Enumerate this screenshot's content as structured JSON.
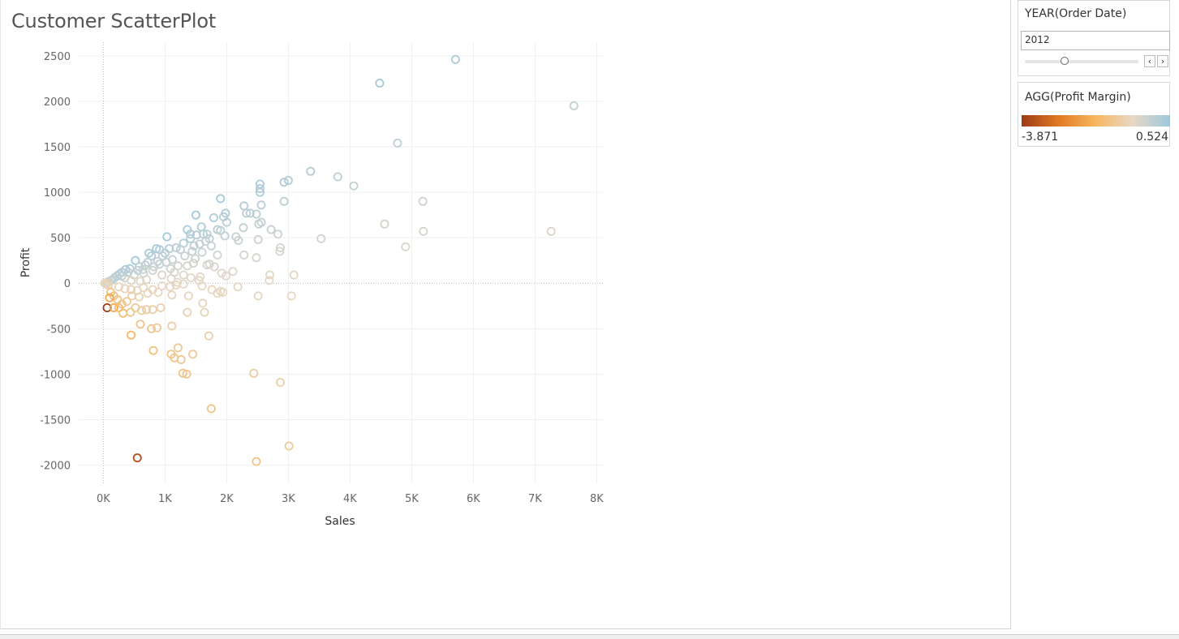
{
  "sheet": {
    "title": "Customer ScatterPlot"
  },
  "filter": {
    "title": "YEAR(Order Date)",
    "value": "2012",
    "prev_icon": "chevron-left-icon",
    "next_icon": "chevron-right-icon",
    "position": 0.35
  },
  "legend": {
    "title": "AGG(Profit Margin)",
    "min_label": "-3.871",
    "max_label": "0.524",
    "colors": [
      "#9c3b16",
      "#e07b22",
      "#f8b660",
      "#e6d8c6",
      "#9ec8de"
    ]
  },
  "chart_data": {
    "type": "scatter",
    "title": "Customer ScatterPlot",
    "xlabel": "Sales",
    "ylabel": "Profit",
    "xlim": [
      -400,
      8100
    ],
    "ylim": [
      -2200,
      2650
    ],
    "x_ticks": [
      0,
      1000,
      2000,
      3000,
      4000,
      5000,
      6000,
      7000,
      8000
    ],
    "x_tick_labels": [
      "0K",
      "1K",
      "2K",
      "3K",
      "4K",
      "5K",
      "6K",
      "7K",
      "8K"
    ],
    "y_ticks": [
      2500,
      2000,
      1500,
      1000,
      500,
      0,
      -500,
      -1000,
      -1500,
      -2000
    ],
    "y_tick_labels": [
      "2500",
      "2000",
      "1500",
      "1000",
      "500",
      "0",
      "-500",
      "-1000",
      "-1500",
      "-2000"
    ],
    "grid": true,
    "color_field": "AGG(Profit Margin)",
    "color_range": [
      -3.871,
      0.524
    ],
    "points": [
      [
        5710,
        2460,
        0.43
      ],
      [
        4480,
        2200,
        0.49
      ],
      [
        7630,
        1950,
        0.26
      ],
      [
        4770,
        1540,
        0.32
      ],
      [
        3360,
        1230,
        0.37
      ],
      [
        3800,
        1170,
        0.31
      ],
      [
        4060,
        1070,
        0.26
      ],
      [
        3000,
        1130,
        0.38
      ],
      [
        2930,
        1110,
        0.38
      ],
      [
        2540,
        1090,
        0.43
      ],
      [
        2540,
        1040,
        0.41
      ],
      [
        2540,
        1000,
        0.39
      ],
      [
        1900,
        930,
        0.49
      ],
      [
        2930,
        900,
        0.31
      ],
      [
        5180,
        900,
        0.17
      ],
      [
        2560,
        860,
        0.34
      ],
      [
        2280,
        850,
        0.37
      ],
      [
        1980,
        770,
        0.39
      ],
      [
        2320,
        770,
        0.33
      ],
      [
        2380,
        770,
        0.32
      ],
      [
        2480,
        760,
        0.31
      ],
      [
        1500,
        750,
        0.5
      ],
      [
        1950,
        730,
        0.37
      ],
      [
        1790,
        720,
        0.4
      ],
      [
        2000,
        670,
        0.33
      ],
      [
        2560,
        670,
        0.26
      ],
      [
        2520,
        650,
        0.26
      ],
      [
        4560,
        650,
        0.14
      ],
      [
        1590,
        620,
        0.39
      ],
      [
        2270,
        610,
        0.27
      ],
      [
        2720,
        590,
        0.22
      ],
      [
        1360,
        590,
        0.43
      ],
      [
        1850,
        590,
        0.32
      ],
      [
        1900,
        580,
        0.3
      ],
      [
        5190,
        570,
        0.11
      ],
      [
        7260,
        570,
        0.08
      ],
      [
        1680,
        540,
        0.32
      ],
      [
        2830,
        540,
        0.19
      ],
      [
        1620,
        540,
        0.33
      ],
      [
        1410,
        540,
        0.38
      ],
      [
        1510,
        530,
        0.35
      ],
      [
        1970,
        520,
        0.26
      ],
      [
        1030,
        510,
        0.5
      ],
      [
        2150,
        510,
        0.24
      ],
      [
        3530,
        490,
        0.14
      ],
      [
        1410,
        490,
        0.35
      ],
      [
        1720,
        490,
        0.28
      ],
      [
        2510,
        480,
        0.19
      ],
      [
        2190,
        470,
        0.21
      ],
      [
        1660,
        460,
        0.28
      ],
      [
        1300,
        440,
        0.34
      ],
      [
        1560,
        430,
        0.28
      ],
      [
        1470,
        410,
        0.28
      ],
      [
        1750,
        410,
        0.23
      ],
      [
        4900,
        400,
        0.08
      ],
      [
        2870,
        390,
        0.14
      ],
      [
        2860,
        350,
        0.12
      ],
      [
        1180,
        390,
        0.33
      ],
      [
        1070,
        380,
        0.35
      ],
      [
        910,
        370,
        0.41
      ],
      [
        1250,
        370,
        0.3
      ],
      [
        1440,
        350,
        0.24
      ],
      [
        1600,
        340,
        0.21
      ],
      [
        1850,
        310,
        0.17
      ],
      [
        2280,
        310,
        0.14
      ],
      [
        1000,
        330,
        0.33
      ],
      [
        1320,
        300,
        0.23
      ],
      [
        1490,
        270,
        0.18
      ],
      [
        2480,
        280,
        0.11
      ],
      [
        1460,
        220,
        0.15
      ],
      [
        1680,
        200,
        0.12
      ],
      [
        1720,
        210,
        0.12
      ],
      [
        1800,
        180,
        0.1
      ],
      [
        2100,
        130,
        0.06
      ],
      [
        1920,
        110,
        0.06
      ],
      [
        2700,
        90,
        0.03
      ],
      [
        3090,
        90,
        0.03
      ],
      [
        1990,
        80,
        0.04
      ],
      [
        1570,
        70,
        0.04
      ],
      [
        2690,
        30,
        0.01
      ],
      [
        1210,
        190,
        0.16
      ],
      [
        1360,
        190,
        0.14
      ],
      [
        1090,
        160,
        0.15
      ],
      [
        910,
        210,
        0.23
      ],
      [
        740,
        330,
        0.45
      ],
      [
        860,
        380,
        0.44
      ],
      [
        780,
        300,
        0.38
      ],
      [
        680,
        200,
        0.29
      ],
      [
        520,
        250,
        0.48
      ],
      [
        580,
        180,
        0.31
      ],
      [
        430,
        160,
        0.37
      ],
      [
        360,
        150,
        0.42
      ],
      [
        300,
        120,
        0.4
      ],
      [
        260,
        100,
        0.38
      ],
      [
        220,
        80,
        0.36
      ],
      [
        180,
        60,
        0.33
      ],
      [
        150,
        40,
        0.27
      ],
      [
        120,
        30,
        0.25
      ],
      [
        90,
        20,
        0.22
      ],
      [
        60,
        10,
        0.17
      ],
      [
        40,
        5,
        0.12
      ],
      [
        20,
        0,
        0.0
      ],
      [
        50,
        -10,
        -0.2
      ],
      [
        80,
        -20,
        -0.25
      ],
      [
        350,
        60,
        0.17
      ],
      [
        500,
        90,
        0.18
      ],
      [
        650,
        110,
        0.17
      ],
      [
        800,
        140,
        0.18
      ],
      [
        950,
        90,
        0.09
      ],
      [
        1100,
        50,
        0.05
      ],
      [
        1200,
        10,
        0.01
      ],
      [
        700,
        40,
        0.06
      ],
      [
        600,
        20,
        0.03
      ],
      [
        450,
        30,
        0.07
      ],
      [
        880,
        240,
        0.27
      ],
      [
        1020,
        230,
        0.23
      ],
      [
        640,
        150,
        0.23
      ],
      [
        820,
        180,
        0.22
      ],
      [
        1120,
        260,
        0.23
      ],
      [
        960,
        300,
        0.31
      ],
      [
        400,
        120,
        0.3
      ],
      [
        560,
        140,
        0.25
      ],
      [
        300,
        80,
        0.27
      ],
      [
        720,
        230,
        0.32
      ],
      [
        1150,
        120,
        0.1
      ],
      [
        1300,
        90,
        0.07
      ],
      [
        1420,
        60,
        0.04
      ],
      [
        1550,
        30,
        0.02
      ],
      [
        250,
        -40,
        -0.16
      ],
      [
        350,
        -60,
        -0.17
      ],
      [
        450,
        -70,
        -0.16
      ],
      [
        550,
        -80,
        -0.15
      ],
      [
        650,
        -50,
        -0.08
      ],
      [
        800,
        -70,
        -0.09
      ],
      [
        950,
        -30,
        -0.03
      ],
      [
        1080,
        -40,
        -0.04
      ],
      [
        1180,
        -20,
        -0.02
      ],
      [
        1300,
        -10,
        -0.01
      ],
      [
        1600,
        -30,
        -0.02
      ],
      [
        1900,
        -90,
        -0.05
      ],
      [
        1760,
        -70,
        -0.04
      ],
      [
        2180,
        -40,
        -0.02
      ],
      [
        1850,
        -110,
        -0.06
      ],
      [
        1940,
        -100,
        -0.05
      ],
      [
        2510,
        -140,
        -0.06
      ],
      [
        3050,
        -140,
        -0.05
      ],
      [
        1380,
        -140,
        -0.1
      ],
      [
        1610,
        -220,
        -0.14
      ],
      [
        1110,
        -130,
        -0.12
      ],
      [
        890,
        -100,
        -0.11
      ],
      [
        720,
        -110,
        -0.15
      ],
      [
        580,
        -150,
        -0.26
      ],
      [
        460,
        -140,
        -0.3
      ],
      [
        380,
        -200,
        -0.53
      ],
      [
        300,
        -230,
        -0.77
      ],
      [
        230,
        -180,
        -0.78
      ],
      [
        170,
        -140,
        -0.82
      ],
      [
        120,
        -100,
        -0.83
      ],
      [
        100,
        -160,
        -1.6
      ],
      [
        60,
        -270,
        -3.87
      ],
      [
        170,
        -270,
        -1.59
      ],
      [
        320,
        -330,
        -1.03
      ],
      [
        250,
        -270,
        -1.08
      ],
      [
        440,
        -320,
        -0.73
      ],
      [
        520,
        -270,
        -0.52
      ],
      [
        620,
        -300,
        -0.48
      ],
      [
        800,
        -290,
        -0.36
      ],
      [
        930,
        -270,
        -0.29
      ],
      [
        1360,
        -320,
        -0.24
      ],
      [
        1640,
        -320,
        -0.2
      ],
      [
        700,
        -290,
        -0.41
      ],
      [
        600,
        -450,
        -0.75
      ],
      [
        450,
        -570,
        -1.27
      ],
      [
        780,
        -500,
        -0.64
      ],
      [
        870,
        -490,
        -0.56
      ],
      [
        1110,
        -470,
        -0.42
      ],
      [
        1710,
        -580,
        -0.34
      ],
      [
        810,
        -740,
        -0.91
      ],
      [
        1210,
        -710,
        -0.59
      ],
      [
        1100,
        -780,
        -0.71
      ],
      [
        1450,
        -780,
        -0.54
      ],
      [
        1150,
        -820,
        -0.71
      ],
      [
        1260,
        -840,
        -0.67
      ],
      [
        1290,
        -990,
        -0.77
      ],
      [
        1350,
        -1000,
        -0.74
      ],
      [
        2440,
        -990,
        -0.41
      ],
      [
        2870,
        -1090,
        -0.38
      ],
      [
        1750,
        -1380,
        -0.79
      ],
      [
        3010,
        -1790,
        -0.59
      ],
      [
        2480,
        -1960,
        -0.79
      ],
      [
        550,
        -1920,
        -3.49
      ]
    ]
  }
}
